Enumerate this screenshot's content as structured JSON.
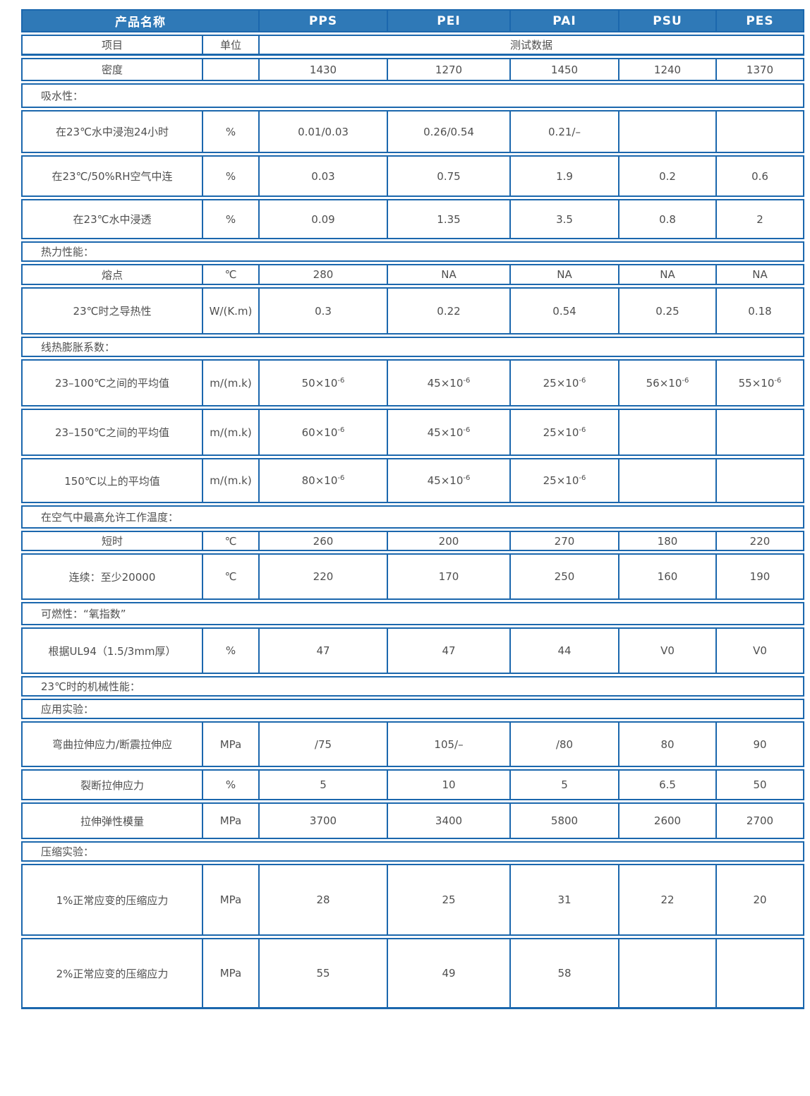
{
  "colors": {
    "border": "#1b67ad",
    "header_bg": "#2f79b7",
    "header_text": "#ffffff",
    "text": "#4f4f4f",
    "page_bg": "#ffffff"
  },
  "table": {
    "header": {
      "product_label": "产品名称",
      "products": [
        "PPS",
        "PEI",
        "PAI",
        "PSU",
        "PES"
      ]
    },
    "subheader": {
      "item": "项目",
      "unit": "单位",
      "data_label": "测试数据"
    },
    "rows": [
      {
        "type": "data",
        "label": "密度",
        "unit": "",
        "values": [
          "1430",
          "1270",
          "1450",
          "1240",
          "1370"
        ]
      },
      {
        "type": "section",
        "label": "吸水性："
      },
      {
        "type": "data",
        "label": "在23℃水中浸泡24小时",
        "unit": "%",
        "values": [
          "0.01/0.03",
          "0.26/0.54",
          "0.21/–",
          "",
          ""
        ]
      },
      {
        "type": "data",
        "label": "在23℃/50%RH空气中连",
        "unit": "%",
        "values": [
          "0.03",
          "0.75",
          "1.9",
          "0.2",
          "0.6"
        ]
      },
      {
        "type": "data",
        "label": "在23℃水中浸透",
        "unit": "%",
        "values": [
          "0.09",
          "1.35",
          "3.5",
          "0.8",
          "2"
        ]
      },
      {
        "type": "section",
        "label": "热力性能："
      },
      {
        "type": "data",
        "label": "熔点",
        "unit": "℃",
        "values": [
          "280",
          "NA",
          "NA",
          "NA",
          "NA"
        ]
      },
      {
        "type": "data",
        "label": "23℃时之导热性",
        "unit": "W/(K.m)",
        "values": [
          "0.3",
          "0.22",
          "0.54",
          "0.25",
          "0.18"
        ]
      },
      {
        "type": "section",
        "label": "线热膨胀系数："
      },
      {
        "type": "data",
        "label": "23–100℃之间的平均值",
        "unit": "m/(m.k)",
        "values": [
          "50×10^-6",
          "45×10^-6",
          "25×10^-6",
          "56×10^-6",
          "55×10^-6"
        ]
      },
      {
        "type": "data",
        "label": "23–150℃之间的平均值",
        "unit": "m/(m.k)",
        "values": [
          "60×10^-6",
          "45×10^-6",
          "25×10^-6",
          "",
          ""
        ]
      },
      {
        "type": "data",
        "label": "150℃以上的平均值",
        "unit": "m/(m.k)",
        "values": [
          "80×10^-6",
          "45×10^-6",
          "25×10^-6",
          "",
          ""
        ]
      },
      {
        "type": "section",
        "label": "在空气中最高允许工作温度："
      },
      {
        "type": "data",
        "label": "短时",
        "unit": "℃",
        "values": [
          "260",
          "200",
          "270",
          "180",
          "220"
        ]
      },
      {
        "type": "data",
        "label": "连续：至少20000",
        "unit": "℃",
        "values": [
          "220",
          "170",
          "250",
          "160",
          "190"
        ]
      },
      {
        "type": "section",
        "label": "可燃性：“氧指数”"
      },
      {
        "type": "data",
        "label": "根据UL94（1.5/3mm厚）",
        "unit": "%",
        "values": [
          "47",
          "47",
          "44",
          "V0",
          "V0"
        ]
      },
      {
        "type": "section",
        "label": "23℃时的机械性能："
      },
      {
        "type": "section",
        "label": "应用实验："
      },
      {
        "type": "data",
        "label": "弯曲拉伸应力/断震拉伸应",
        "unit": "MPa",
        "values": [
          "/75",
          "105/–",
          "/80",
          "80",
          "90"
        ]
      },
      {
        "type": "data",
        "label": "裂断拉伸应力",
        "unit": "%",
        "values": [
          "5",
          "10",
          "5",
          "6.5",
          "50"
        ]
      },
      {
        "type": "data",
        "label": "拉伸弹性模量",
        "unit": "MPa",
        "values": [
          "3700",
          "3400",
          "5800",
          "2600",
          "2700"
        ]
      },
      {
        "type": "section",
        "label": "压缩实验："
      },
      {
        "type": "data",
        "label": "1%正常应变的压缩应力",
        "unit": "MPa",
        "values": [
          "28",
          "25",
          "31",
          "22",
          "20"
        ]
      },
      {
        "type": "data",
        "label": "2%正常应变的压缩应力",
        "unit": "MPa",
        "values": [
          "55",
          "49",
          "58",
          "",
          ""
        ]
      }
    ]
  }
}
